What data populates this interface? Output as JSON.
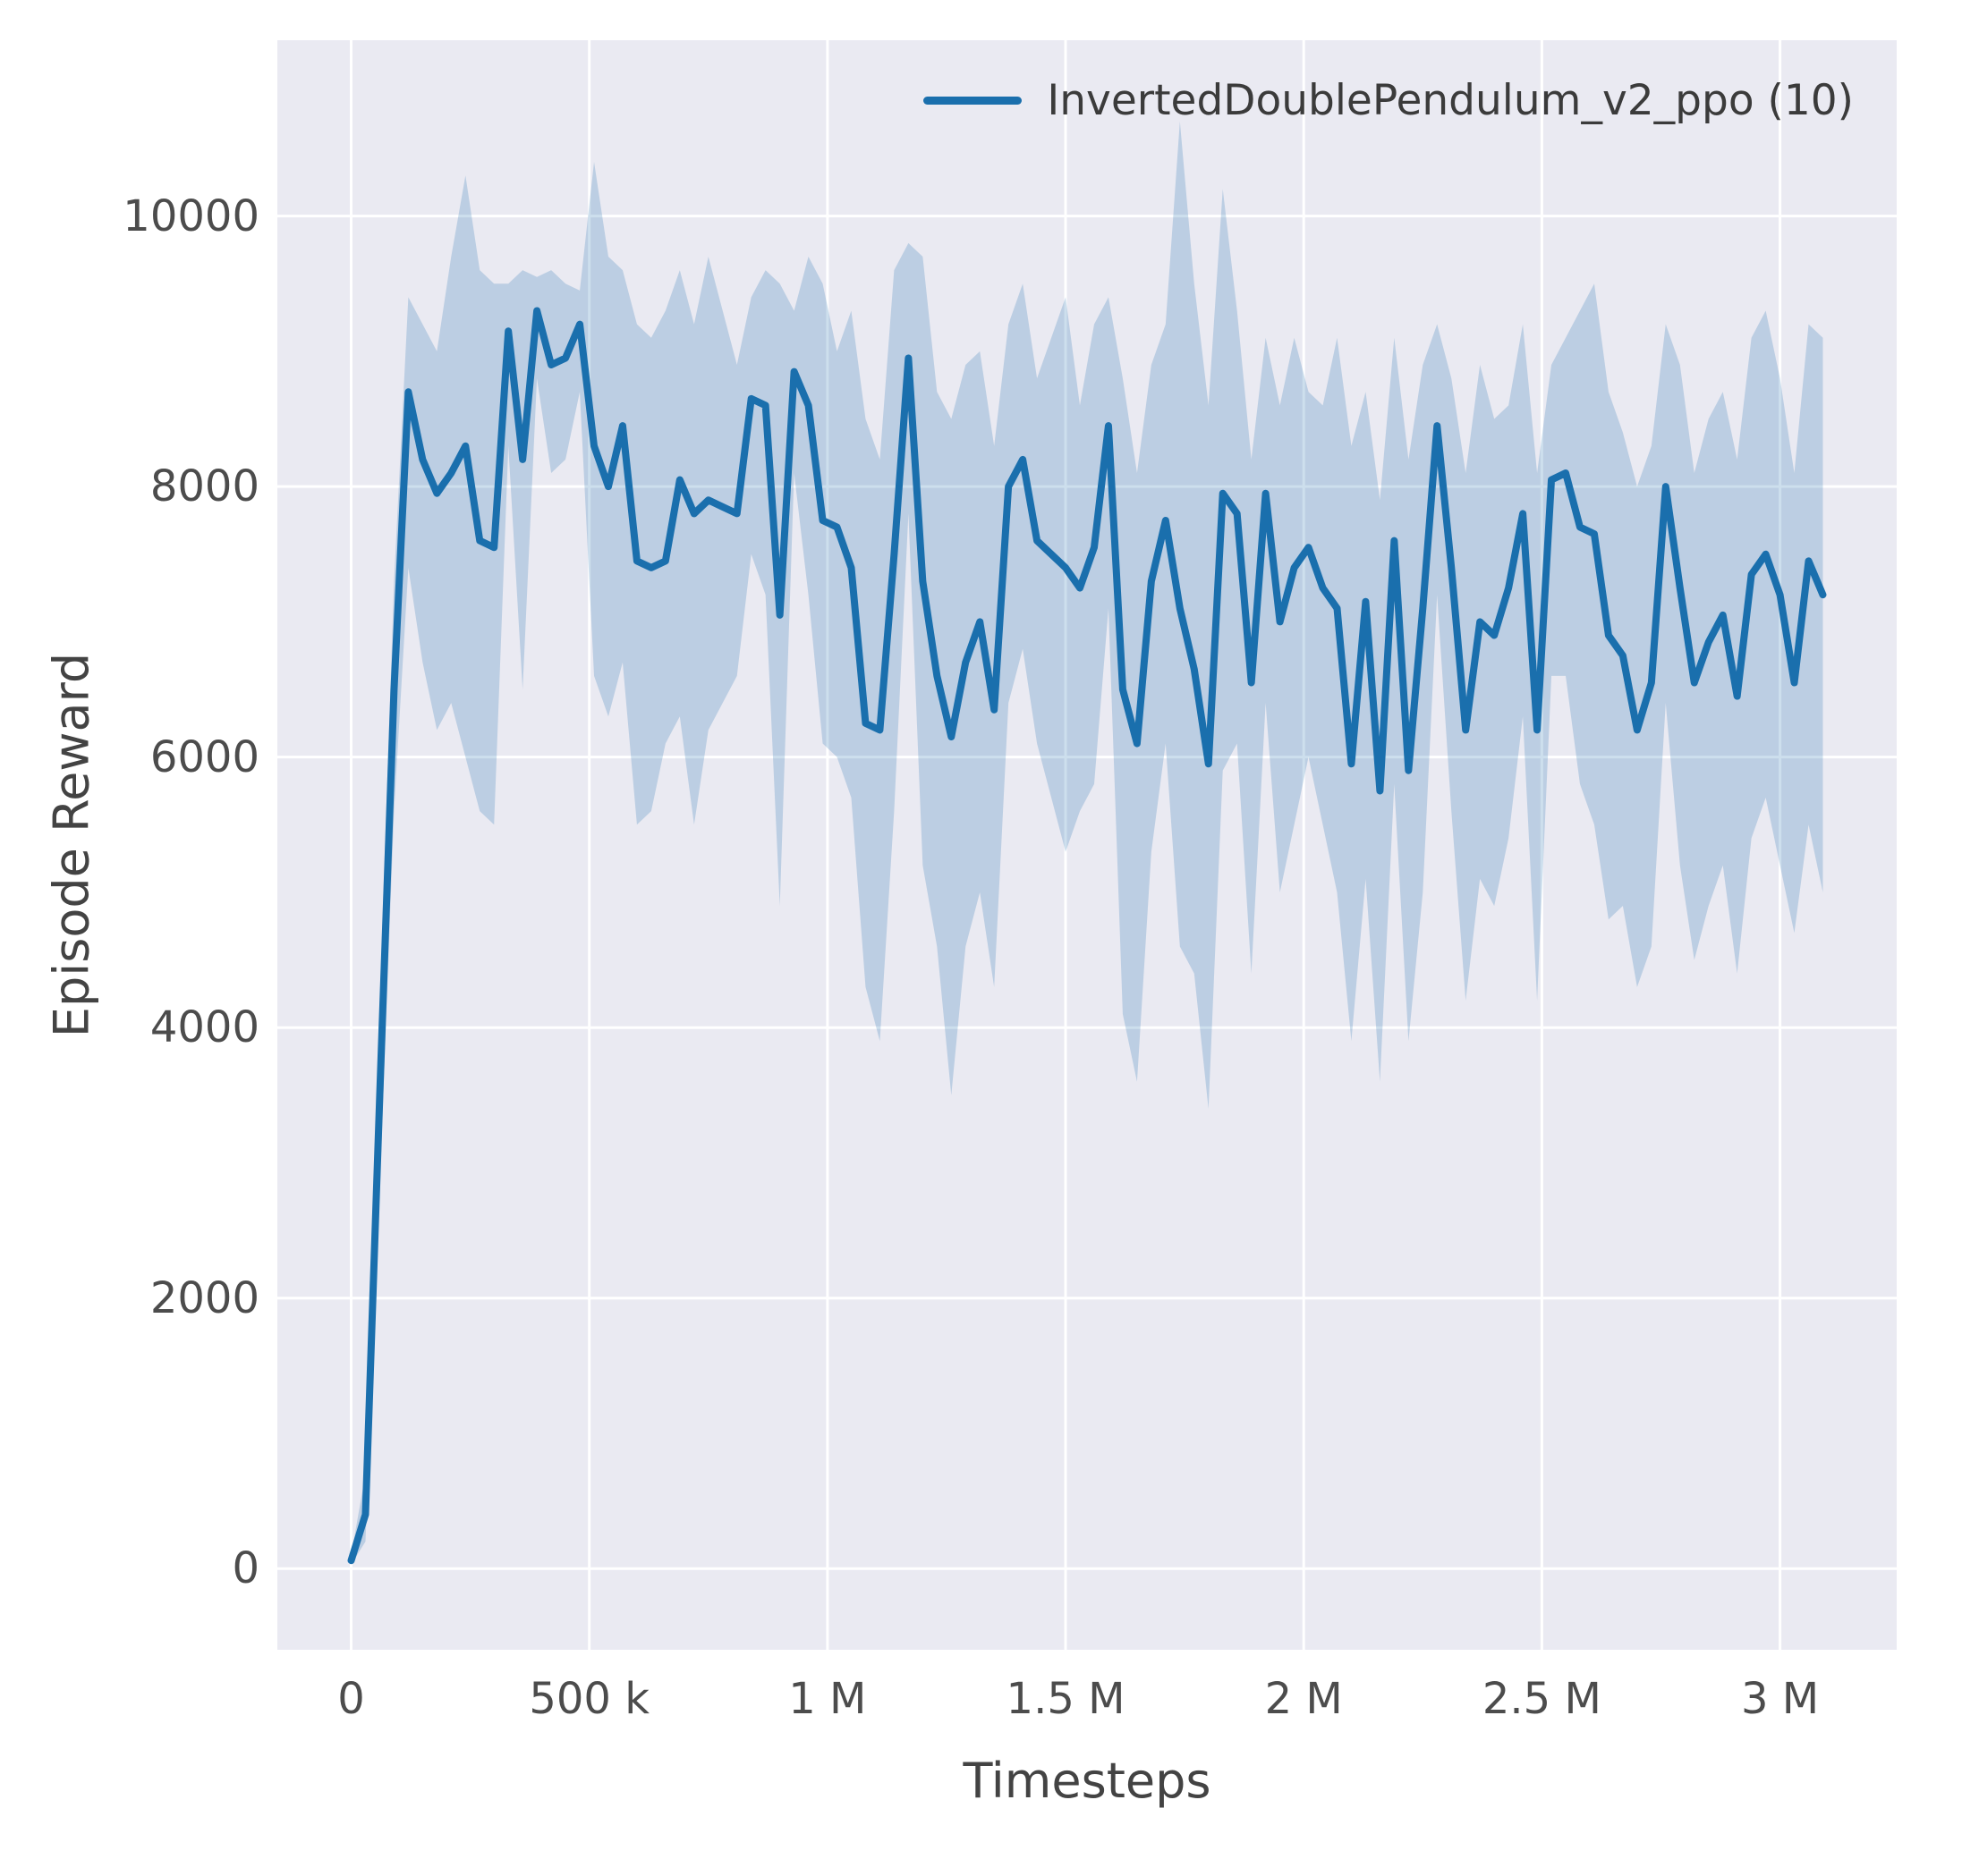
{
  "legend": {
    "label": "InvertedDoublePendulum_v2_ppo (10)"
  },
  "axes": {
    "xlabel": "Timesteps",
    "ylabel": "Episode Reward"
  },
  "colors": {
    "line": "#1a6fad",
    "band": "#1a6fad",
    "plot_background": "#eaeaf2",
    "grid": "#ffffff",
    "text": "#4c4c4c"
  },
  "chart_data": {
    "type": "line",
    "title": "",
    "xlabel": "Timesteps",
    "ylabel": "Episode Reward",
    "xlim": [
      -155000,
      3245000
    ],
    "ylim": [
      -600,
      11300
    ],
    "grid": true,
    "legend_position": "upper right",
    "line_color": "#1a6fad",
    "band_color": "#1a6fad",
    "band_opacity": 0.22,
    "x_ticks": [
      {
        "value": 0,
        "label": "0"
      },
      {
        "value": 500000,
        "label": "500 k"
      },
      {
        "value": 1000000,
        "label": "1 M"
      },
      {
        "value": 1500000,
        "label": "1.5 M"
      },
      {
        "value": 2000000,
        "label": "2 M"
      },
      {
        "value": 2500000,
        "label": "2.5 M"
      },
      {
        "value": 3000000,
        "label": "3 M"
      }
    ],
    "y_ticks": [
      {
        "value": 0,
        "label": "0"
      },
      {
        "value": 2000,
        "label": "2000"
      },
      {
        "value": 4000,
        "label": "4000"
      },
      {
        "value": 6000,
        "label": "6000"
      },
      {
        "value": 8000,
        "label": "8000"
      },
      {
        "value": 10000,
        "label": "10000"
      }
    ],
    "x": [
      0,
      30000,
      60000,
      90000,
      120000,
      150000,
      180000,
      210000,
      240000,
      270000,
      300000,
      330000,
      360000,
      390000,
      420000,
      450000,
      480000,
      510000,
      540000,
      570000,
      600000,
      630000,
      660000,
      690000,
      720000,
      750000,
      780000,
      810000,
      840000,
      870000,
      900000,
      930000,
      960000,
      990000,
      1020000,
      1050000,
      1080000,
      1110000,
      1140000,
      1170000,
      1200000,
      1230000,
      1260000,
      1290000,
      1320000,
      1350000,
      1380000,
      1410000,
      1440000,
      1470000,
      1500000,
      1530000,
      1560000,
      1590000,
      1620000,
      1650000,
      1680000,
      1710000,
      1740000,
      1770000,
      1800000,
      1830000,
      1860000,
      1890000,
      1920000,
      1950000,
      1980000,
      2010000,
      2040000,
      2070000,
      2100000,
      2130000,
      2160000,
      2190000,
      2220000,
      2250000,
      2280000,
      2310000,
      2340000,
      2370000,
      2400000,
      2430000,
      2460000,
      2490000,
      2520000,
      2550000,
      2580000,
      2610000,
      2640000,
      2670000,
      2700000,
      2730000,
      2760000,
      2790000,
      2820000,
      2850000,
      2880000,
      2910000,
      2940000,
      2970000,
      3000000,
      3030000,
      3060000,
      3090000
    ],
    "series": [
      {
        "name": "InvertedDoublePendulum_v2_ppo (10)",
        "values": [
          60,
          400,
          3500,
          6500,
          8700,
          8200,
          7950,
          8100,
          8300,
          7600,
          7550,
          9150,
          8200,
          9300,
          8900,
          8950,
          9200,
          8300,
          8000,
          8450,
          7450,
          7400,
          7450,
          8050,
          7800,
          7900,
          7850,
          7800,
          8650,
          8600,
          7050,
          8850,
          8600,
          7750,
          7700,
          7400,
          6250,
          6200,
          7500,
          8950,
          7300,
          6600,
          6150,
          6700,
          7000,
          6350,
          8000,
          8200,
          7600,
          7500,
          7400,
          7250,
          7550,
          8450,
          6500,
          6100,
          7300,
          7750,
          7100,
          6650,
          5950,
          7950,
          7800,
          6550,
          7950,
          7000,
          7400,
          7550,
          7250,
          7100,
          5950,
          7150,
          5750,
          7600,
          5900,
          7100,
          8450,
          7400,
          6200,
          7000,
          6900,
          7250,
          7800,
          6200,
          8050,
          8100,
          7700,
          7650,
          6900,
          6750,
          6200,
          6550,
          8000,
          7250,
          6550,
          6850,
          7050,
          6450,
          7350,
          7500,
          7200,
          6550,
          7450,
          7200
        ],
        "upper": [
          100,
          700,
          4200,
          7300,
          9400,
          9200,
          9000,
          9700,
          10300,
          9600,
          9500,
          9500,
          9600,
          9550,
          9600,
          9500,
          9450,
          10400,
          9700,
          9600,
          9200,
          9100,
          9300,
          9600,
          9200,
          9700,
          9300,
          8900,
          9400,
          9600,
          9500,
          9300,
          9700,
          9500,
          9000,
          9300,
          8500,
          8200,
          9600,
          9800,
          9700,
          8700,
          8500,
          8900,
          9000,
          8300,
          9200,
          9500,
          8800,
          9100,
          9400,
          8600,
          9200,
          9400,
          8800,
          8100,
          8900,
          9200,
          10700,
          9500,
          8600,
          10200,
          9300,
          8200,
          9100,
          8600,
          9100,
          8700,
          8600,
          9100,
          8300,
          8700,
          7900,
          9100,
          8200,
          8900,
          9200,
          8800,
          8100,
          8900,
          8500,
          8600,
          9200,
          8100,
          8900,
          9100,
          9300,
          9500,
          8700,
          8400,
          8000,
          8300,
          9200,
          8900,
          8100,
          8500,
          8700,
          8200,
          9100,
          9300,
          8800,
          8100,
          9200,
          9100
        ],
        "lower": [
          30,
          200,
          2800,
          5600,
          7400,
          6700,
          6200,
          6400,
          6000,
          5600,
          5500,
          8300,
          6500,
          8800,
          8100,
          8200,
          8700,
          6600,
          6300,
          6700,
          5500,
          5600,
          6100,
          6300,
          5500,
          6200,
          6400,
          6600,
          7500,
          7200,
          4900,
          8100,
          7200,
          6100,
          6000,
          5700,
          4300,
          3900,
          5600,
          7800,
          5200,
          4600,
          3500,
          4600,
          5000,
          4300,
          6400,
          6800,
          6100,
          5700,
          5300,
          5600,
          5800,
          7100,
          4100,
          3600,
          5300,
          6100,
          4600,
          4400,
          3400,
          5900,
          6100,
          4400,
          6400,
          5000,
          5500,
          6000,
          5500,
          5000,
          3900,
          5100,
          3600,
          5800,
          3900,
          5000,
          7200,
          5600,
          4200,
          5100,
          4900,
          5400,
          6300,
          4200,
          6600,
          6600,
          5800,
          5500,
          4800,
          4900,
          4300,
          4600,
          6400,
          5200,
          4500,
          4900,
          5200,
          4400,
          5400,
          5700,
          5200,
          4700,
          5500,
          5000
        ]
      }
    ]
  }
}
